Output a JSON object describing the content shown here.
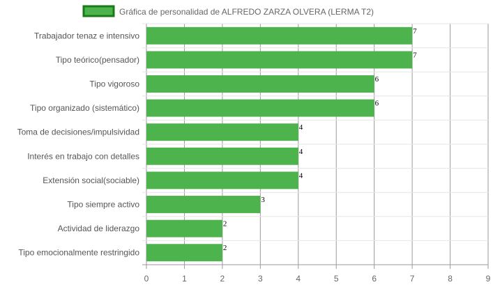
{
  "chart_data": {
    "type": "bar",
    "orientation": "horizontal",
    "categories": [
      "Trabajador tenaz e intensivo",
      "Tipo teórico(pensador)",
      "Tipo vigoroso",
      "Tipo organizado (sistemático)",
      "Toma de decisiones/impulsividad",
      "Interés en trabajo con detalles",
      "Extensión social(sociable)",
      "Tipo siempre activo",
      "Actividad de liderazgo",
      "Tipo emocionalmente restringido"
    ],
    "series": [
      {
        "name": "Gráfica de personalidad de ALFREDO ZARZA OLVERA (LERMA T2)",
        "values": [
          7,
          7,
          6,
          6,
          4,
          4,
          4,
          3,
          2,
          2
        ],
        "color": "#4db34d",
        "border_color": "#1a7a1a"
      }
    ],
    "xlim": [
      0,
      9
    ],
    "x_ticks": [
      0,
      1,
      2,
      3,
      4,
      5,
      6,
      7,
      8,
      9
    ],
    "grid": true,
    "legend_position": "top",
    "data_labels": true
  }
}
